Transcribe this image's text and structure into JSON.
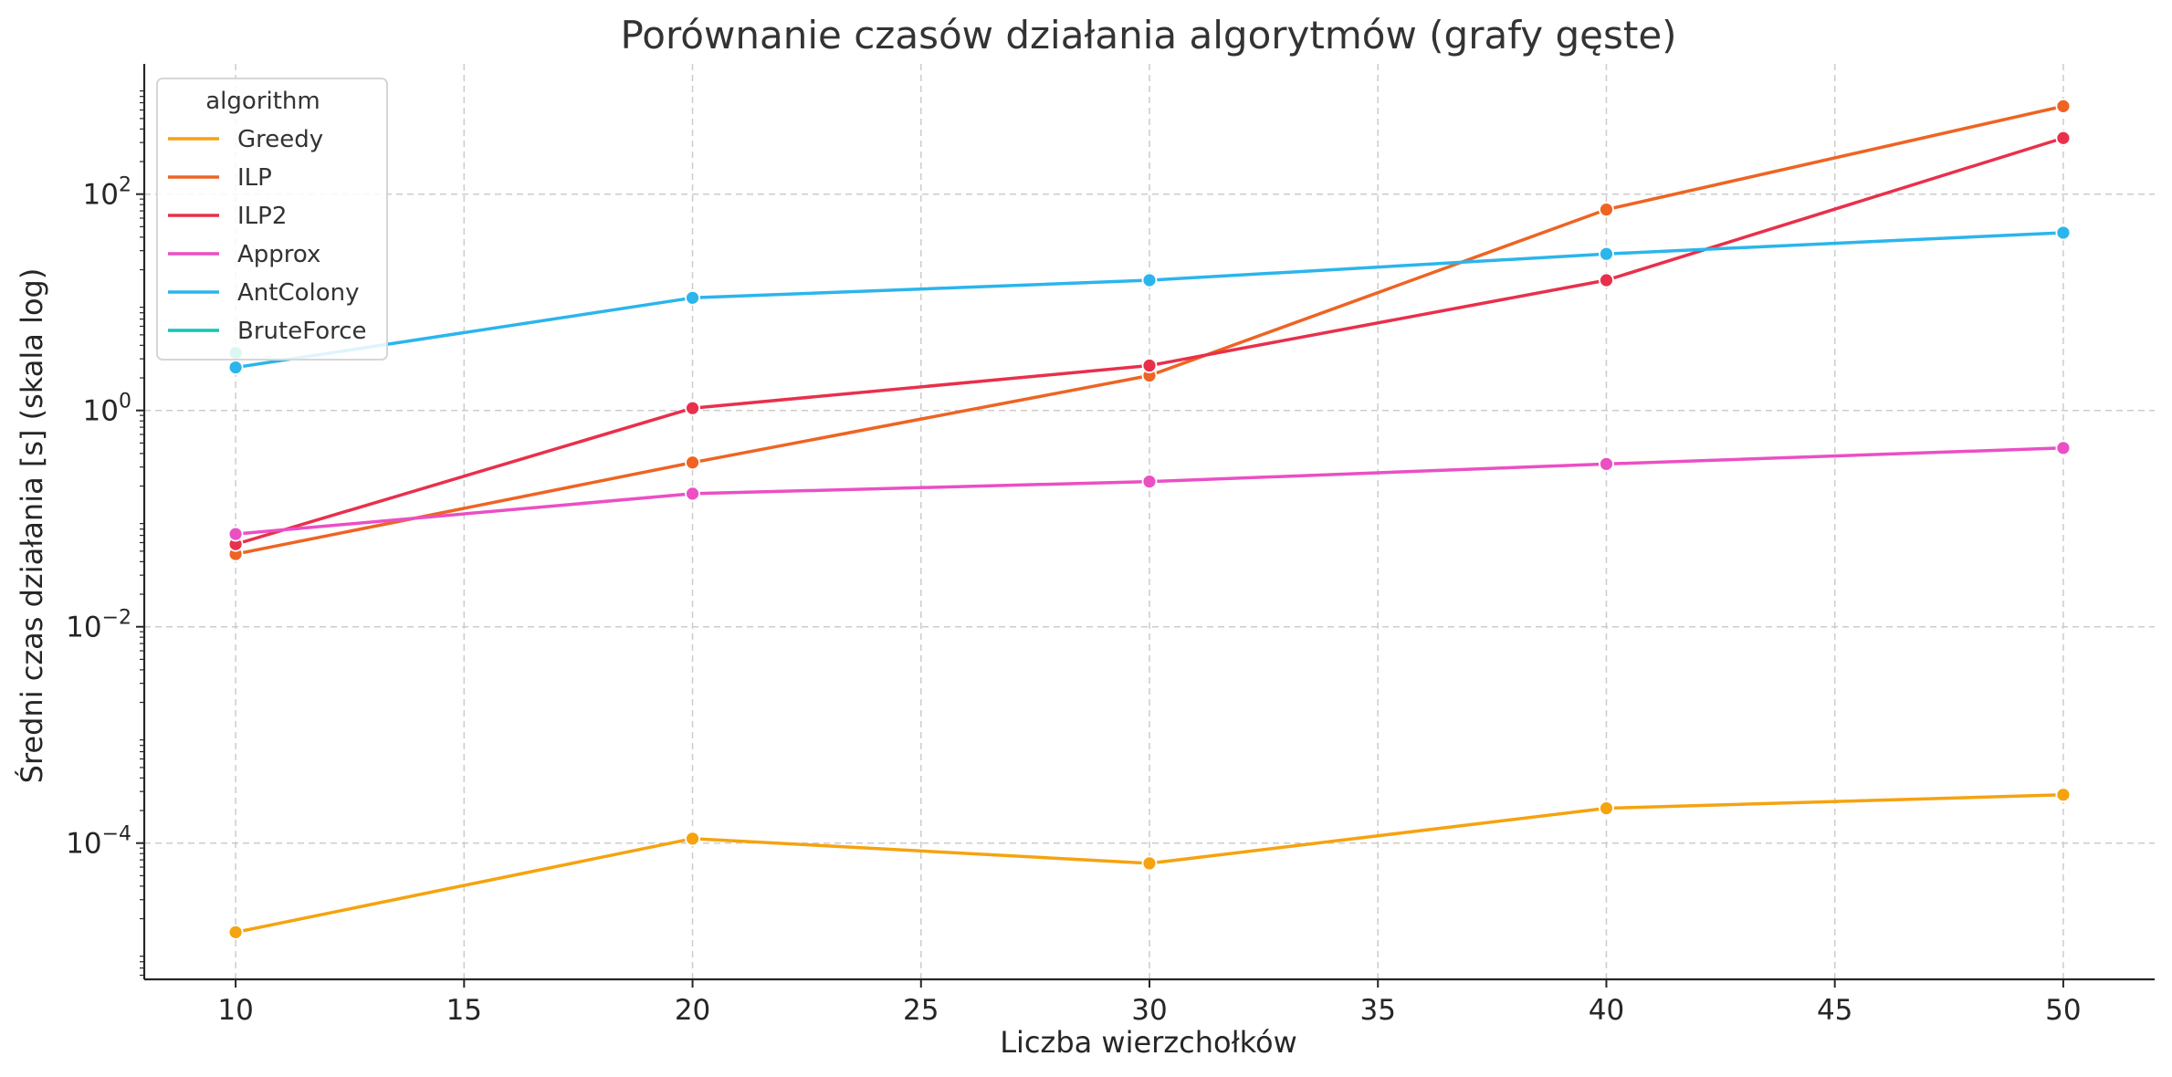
{
  "chart_data": {
    "type": "line",
    "title": "Porównanie czasów działania algorytmów (grafy gęste)",
    "xlabel": "Liczba wierzchołków",
    "ylabel": "Średni czas działania [s] (skala log)",
    "x_ticks": [
      10,
      15,
      20,
      25,
      30,
      35,
      40,
      45,
      50
    ],
    "y_ticks": [
      {
        "value": 0.0001,
        "base": "10",
        "exp": "−4"
      },
      {
        "value": 0.01,
        "base": "10",
        "exp": "−2"
      },
      {
        "value": 1,
        "base": "10",
        "exp": "0"
      },
      {
        "value": 100,
        "base": "10",
        "exp": "2"
      }
    ],
    "xlim": [
      8,
      52
    ],
    "ylim": [
      5.5e-06,
      1600
    ],
    "yscale": "log",
    "grid": true,
    "legend": {
      "title": "algorithm",
      "placement": "top-left"
    },
    "series": [
      {
        "name": "Greedy",
        "color": "#F5A30F",
        "x": [
          10,
          20,
          30,
          40,
          50
        ],
        "y": [
          1.5e-05,
          0.00011,
          6.5e-05,
          0.00021,
          0.00028
        ]
      },
      {
        "name": "ILP",
        "color": "#EE6423",
        "x": [
          10,
          20,
          30,
          40,
          50
        ],
        "y": [
          0.047,
          0.33,
          2.1,
          72,
          650
        ]
      },
      {
        "name": "ILP2",
        "color": "#E8304C",
        "x": [
          10,
          20,
          30,
          40,
          50
        ],
        "y": [
          0.058,
          1.05,
          2.6,
          16,
          330
        ]
      },
      {
        "name": "Approx",
        "color": "#EB4FC4",
        "x": [
          10,
          20,
          30,
          40,
          50
        ],
        "y": [
          0.072,
          0.17,
          0.22,
          0.32,
          0.45
        ]
      },
      {
        "name": "AntColony",
        "color": "#2BB5EC",
        "x": [
          10,
          20,
          30,
          40,
          50
        ],
        "y": [
          2.5,
          11,
          16,
          28,
          44
        ]
      },
      {
        "name": "BruteForce",
        "color": "#14C4B1",
        "x": [
          10
        ],
        "y": [
          3.4
        ]
      }
    ]
  }
}
